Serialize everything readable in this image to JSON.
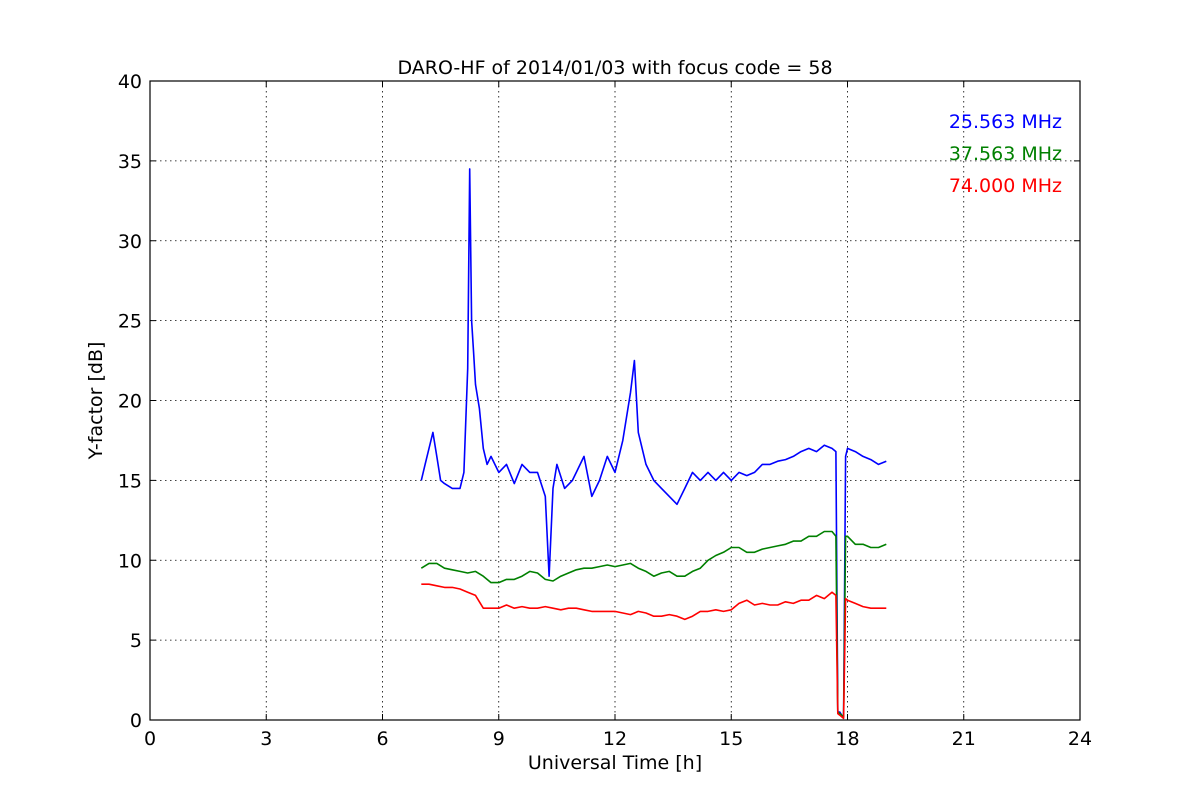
{
  "chart_data": {
    "type": "line",
    "title": "DARO-HF of 2014/01/03 with focus code = 58",
    "xlabel": "Universal Time [h]",
    "ylabel": "Y-factor [dB]",
    "xlim": [
      0,
      24
    ],
    "ylim": [
      0,
      40
    ],
    "xticks": [
      0,
      3,
      6,
      9,
      12,
      15,
      18,
      21,
      24
    ],
    "yticks": [
      0,
      5,
      10,
      15,
      20,
      25,
      30,
      35,
      40
    ],
    "xtick_labels": [
      "0",
      "3",
      "6",
      "9",
      "12",
      "15",
      "18",
      "21",
      "24"
    ],
    "ytick_labels": [
      "0",
      "5",
      "10",
      "15",
      "20",
      "25",
      "30",
      "35",
      "40"
    ],
    "grid": true,
    "legend_placement": "top-right",
    "series": [
      {
        "name": "25.563 MHz",
        "color": "#0000ff",
        "x": [
          7.0,
          7.1,
          7.2,
          7.3,
          7.4,
          7.5,
          7.6,
          7.8,
          8.0,
          8.1,
          8.2,
          8.25,
          8.3,
          8.35,
          8.4,
          8.5,
          8.6,
          8.7,
          8.8,
          9.0,
          9.2,
          9.4,
          9.6,
          9.8,
          10.0,
          10.2,
          10.3,
          10.4,
          10.5,
          10.7,
          10.9,
          11.0,
          11.2,
          11.4,
          11.6,
          11.8,
          12.0,
          12.2,
          12.4,
          12.5,
          12.6,
          12.8,
          13.0,
          13.2,
          13.4,
          13.6,
          13.8,
          14.0,
          14.2,
          14.4,
          14.6,
          14.8,
          15.0,
          15.2,
          15.4,
          15.6,
          15.8,
          16.0,
          16.2,
          16.4,
          16.6,
          16.8,
          17.0,
          17.2,
          17.4,
          17.6,
          17.7,
          17.75,
          17.8,
          17.85,
          17.9,
          17.95,
          18.0,
          18.2,
          18.4,
          18.6,
          18.8,
          19.0
        ],
        "values": [
          15.0,
          16.0,
          17.0,
          18.0,
          16.5,
          15.0,
          14.8,
          14.5,
          14.5,
          15.5,
          22.0,
          34.5,
          25.0,
          23.0,
          21.0,
          19.5,
          17.0,
          16.0,
          16.5,
          15.5,
          16.0,
          14.8,
          16.0,
          15.5,
          15.5,
          14.0,
          9.0,
          14.5,
          16.0,
          14.5,
          15.0,
          15.5,
          16.5,
          14.0,
          15.0,
          16.5,
          15.5,
          17.5,
          20.5,
          22.5,
          18.0,
          16.0,
          15.0,
          14.5,
          14.0,
          13.5,
          14.5,
          15.5,
          15.0,
          15.5,
          15.0,
          15.5,
          15.0,
          15.5,
          15.3,
          15.5,
          16.0,
          16.0,
          16.2,
          16.3,
          16.5,
          16.8,
          17.0,
          16.8,
          17.2,
          17.0,
          16.8,
          0.5,
          0.5,
          0.3,
          0.2,
          16.5,
          17.0,
          16.8,
          16.5,
          16.3,
          16.0,
          16.2
        ]
      },
      {
        "name": "37.563 MHz",
        "color": "#008000",
        "x": [
          7.0,
          7.2,
          7.4,
          7.6,
          7.8,
          8.0,
          8.2,
          8.4,
          8.6,
          8.8,
          9.0,
          9.2,
          9.4,
          9.6,
          9.8,
          10.0,
          10.2,
          10.4,
          10.6,
          10.8,
          11.0,
          11.2,
          11.4,
          11.6,
          11.8,
          12.0,
          12.2,
          12.4,
          12.6,
          12.8,
          13.0,
          13.2,
          13.4,
          13.6,
          13.8,
          14.0,
          14.2,
          14.4,
          14.6,
          14.8,
          15.0,
          15.2,
          15.4,
          15.6,
          15.8,
          16.0,
          16.2,
          16.4,
          16.6,
          16.8,
          17.0,
          17.2,
          17.4,
          17.6,
          17.7,
          17.75,
          17.8,
          17.85,
          17.9,
          17.95,
          18.0,
          18.2,
          18.4,
          18.6,
          18.8,
          19.0
        ],
        "values": [
          9.5,
          9.8,
          9.8,
          9.5,
          9.4,
          9.3,
          9.2,
          9.3,
          9.0,
          8.6,
          8.6,
          8.8,
          8.8,
          9.0,
          9.3,
          9.2,
          8.8,
          8.7,
          9.0,
          9.2,
          9.4,
          9.5,
          9.5,
          9.6,
          9.7,
          9.6,
          9.7,
          9.8,
          9.5,
          9.3,
          9.0,
          9.2,
          9.3,
          9.0,
          9.0,
          9.3,
          9.5,
          10.0,
          10.3,
          10.5,
          10.8,
          10.8,
          10.5,
          10.5,
          10.7,
          10.8,
          10.9,
          11.0,
          11.2,
          11.2,
          11.5,
          11.5,
          11.8,
          11.8,
          11.5,
          0.5,
          0.4,
          0.3,
          0.2,
          11.5,
          11.5,
          11.0,
          11.0,
          10.8,
          10.8,
          11.0
        ]
      },
      {
        "name": "74.000 MHz",
        "color": "#ff0000",
        "x": [
          7.0,
          7.2,
          7.4,
          7.6,
          7.8,
          8.0,
          8.2,
          8.4,
          8.6,
          8.8,
          9.0,
          9.2,
          9.4,
          9.6,
          9.8,
          10.0,
          10.2,
          10.4,
          10.6,
          10.8,
          11.0,
          11.2,
          11.4,
          11.6,
          11.8,
          12.0,
          12.2,
          12.4,
          12.6,
          12.8,
          13.0,
          13.2,
          13.4,
          13.6,
          13.8,
          14.0,
          14.2,
          14.4,
          14.6,
          14.8,
          15.0,
          15.2,
          15.4,
          15.6,
          15.8,
          16.0,
          16.2,
          16.4,
          16.6,
          16.8,
          17.0,
          17.2,
          17.4,
          17.6,
          17.7,
          17.75,
          17.8,
          17.85,
          17.9,
          17.95,
          18.0,
          18.2,
          18.4,
          18.6,
          18.8,
          19.0
        ],
        "values": [
          8.5,
          8.5,
          8.4,
          8.3,
          8.3,
          8.2,
          8.0,
          7.8,
          7.0,
          7.0,
          7.0,
          7.2,
          7.0,
          7.1,
          7.0,
          7.0,
          7.1,
          7.0,
          6.9,
          7.0,
          7.0,
          6.9,
          6.8,
          6.8,
          6.8,
          6.8,
          6.7,
          6.6,
          6.8,
          6.7,
          6.5,
          6.5,
          6.6,
          6.5,
          6.3,
          6.5,
          6.8,
          6.8,
          6.9,
          6.8,
          6.9,
          7.3,
          7.5,
          7.2,
          7.3,
          7.2,
          7.2,
          7.4,
          7.3,
          7.5,
          7.5,
          7.8,
          7.6,
          8.0,
          7.8,
          0.4,
          0.3,
          0.2,
          0.1,
          7.6,
          7.5,
          7.3,
          7.1,
          7.0,
          7.0,
          7.0
        ]
      }
    ]
  }
}
